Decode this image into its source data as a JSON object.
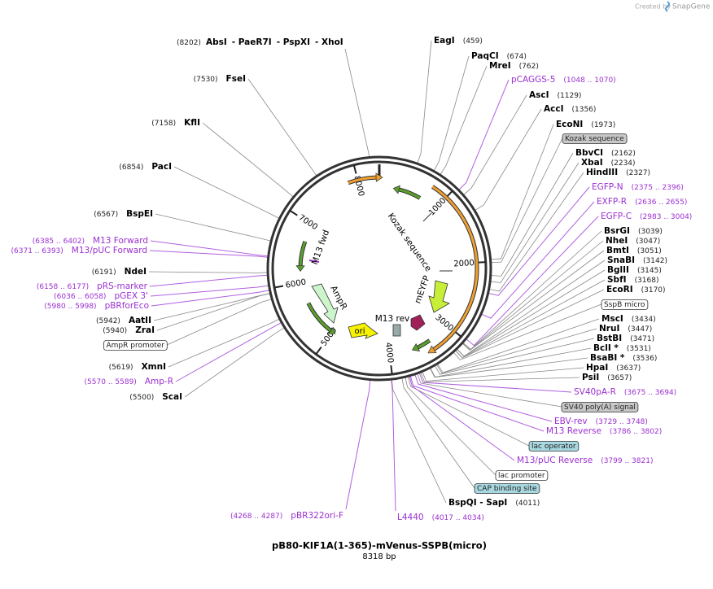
{
  "header": {
    "watermark": "Created by",
    "brand": "SnapGene"
  },
  "map": {
    "title": "pB80-KIF1A(1-365)-mVenus-SSPB(micro)",
    "length": "8318 bp",
    "ticks": [
      "1000",
      "2000",
      "3000",
      "4000",
      "5000",
      "6000",
      "7000",
      "8000"
    ],
    "features": [
      "Kozak sequence",
      "mEYFP",
      "M13 rev",
      "ori",
      "AmpR",
      "M13 fwd"
    ],
    "top_site": {
      "pos": "(8202)",
      "names": [
        "AbsI",
        "- PaeR7I",
        "- PspXI",
        "- XhoI"
      ]
    },
    "labels": [
      {
        "name": "EagI",
        "pos": "(459)",
        "kind": "enzyme"
      },
      {
        "name": "PaqCI",
        "pos": "(674)",
        "kind": "enzyme"
      },
      {
        "name": "MreI",
        "pos": "(762)",
        "kind": "enzyme"
      },
      {
        "name": "pCAGGS-5",
        "pos": "(1048 .. 1070)",
        "kind": "primer"
      },
      {
        "name": "AscI",
        "pos": "(1129)",
        "kind": "enzyme"
      },
      {
        "name": "AccI",
        "pos": "(1356)",
        "kind": "enzyme"
      },
      {
        "name": "EcoNI",
        "pos": "(1973)",
        "kind": "enzyme"
      },
      {
        "name": "Kozak sequence",
        "kind": "feature-gray"
      },
      {
        "name": "BbvCI",
        "pos": "(2162)",
        "kind": "enzyme"
      },
      {
        "name": "XbaI",
        "pos": "(2234)",
        "kind": "enzyme"
      },
      {
        "name": "HindIII",
        "pos": "(2327)",
        "kind": "enzyme"
      },
      {
        "name": "EGFP-N",
        "pos": "(2375 .. 2396)",
        "kind": "primer"
      },
      {
        "name": "EXFP-R",
        "pos": "(2636 .. 2655)",
        "kind": "primer"
      },
      {
        "name": "EGFP-C",
        "pos": "(2983 .. 3004)",
        "kind": "primer"
      },
      {
        "name": "BsrGI",
        "pos": "(3039)",
        "kind": "enzyme"
      },
      {
        "name": "NheI",
        "pos": "(3047)",
        "kind": "enzyme"
      },
      {
        "name": "BmtI",
        "pos": "(3051)",
        "kind": "enzyme"
      },
      {
        "name": "SnaBI",
        "pos": "(3142)",
        "kind": "enzyme"
      },
      {
        "name": "BglII",
        "pos": "(3145)",
        "kind": "enzyme"
      },
      {
        "name": "SbfI",
        "pos": "(3168)",
        "kind": "enzyme"
      },
      {
        "name": "EcoRI",
        "pos": "(3170)",
        "kind": "enzyme"
      },
      {
        "name": "SspB micro",
        "kind": "feature-white"
      },
      {
        "name": "MscI",
        "pos": "(3434)",
        "kind": "enzyme"
      },
      {
        "name": "NruI",
        "pos": "(3447)",
        "kind": "enzyme"
      },
      {
        "name": "BstBI",
        "pos": "(3471)",
        "kind": "enzyme"
      },
      {
        "name": "BclI *",
        "pos": "(3531)",
        "kind": "enzyme"
      },
      {
        "name": "BsaBI *",
        "pos": "(3536)",
        "kind": "enzyme"
      },
      {
        "name": "HpaI",
        "pos": "(3637)",
        "kind": "enzyme"
      },
      {
        "name": "PsiI",
        "pos": "(3657)",
        "kind": "enzyme"
      },
      {
        "name": "SV40pA-R",
        "pos": "(3675 .. 3694)",
        "kind": "primer"
      },
      {
        "name": "SV40 poly(A) signal",
        "kind": "feature-gray"
      },
      {
        "name": "EBV-rev",
        "pos": "(3729 .. 3748)",
        "kind": "primer"
      },
      {
        "name": "M13 Reverse",
        "pos": "(3786 .. 3802)",
        "kind": "primer"
      },
      {
        "name": "lac operator",
        "kind": "feature-blue"
      },
      {
        "name": "M13/pUC Reverse",
        "pos": "(3799 .. 3821)",
        "kind": "primer"
      },
      {
        "name": "lac promoter",
        "kind": "feature-white"
      },
      {
        "name": "CAP binding site",
        "kind": "feature-blue"
      },
      {
        "name": "BspQI - SapI",
        "pos": "(4011)",
        "kind": "enzyme"
      },
      {
        "name": "L4440",
        "pos": "(4017 .. 4034)",
        "kind": "primer"
      },
      {
        "name": "pBR322ori-F",
        "pos": "(4268 .. 4287)",
        "kind": "primer"
      },
      {
        "name": "ScaI",
        "pos": "(5500)",
        "kind": "enzyme"
      },
      {
        "name": "Amp-R",
        "pos": "(5570 .. 5589)",
        "kind": "primer"
      },
      {
        "name": "XmnI",
        "pos": "(5619)",
        "kind": "enzyme"
      },
      {
        "name": "AmpR promoter",
        "kind": "feature-white"
      },
      {
        "name": "ZraI",
        "pos": "(5940)",
        "kind": "enzyme"
      },
      {
        "name": "AatII",
        "pos": "(5942)",
        "kind": "enzyme"
      },
      {
        "name": "pBRforEco",
        "pos": "(5980 .. 5998)",
        "kind": "primer"
      },
      {
        "name": "pGEX 3'",
        "pos": "(6036 .. 6058)",
        "kind": "primer"
      },
      {
        "name": "pRS-marker",
        "pos": "(6158 .. 6177)",
        "kind": "primer"
      },
      {
        "name": "NdeI",
        "pos": "(6191)",
        "kind": "enzyme"
      },
      {
        "name": "M13/pUC Forward",
        "pos": "(6371 .. 6393)",
        "kind": "primer"
      },
      {
        "name": "M13 Forward",
        "pos": "(6385 .. 6402)",
        "kind": "primer"
      },
      {
        "name": "BspEI",
        "pos": "(6567)",
        "kind": "enzyme"
      },
      {
        "name": "PacI",
        "pos": "(6854)",
        "kind": "enzyme"
      },
      {
        "name": "KflI",
        "pos": "(7158)",
        "kind": "enzyme"
      },
      {
        "name": "FseI",
        "pos": "(7530)",
        "kind": "enzyme"
      }
    ]
  }
}
